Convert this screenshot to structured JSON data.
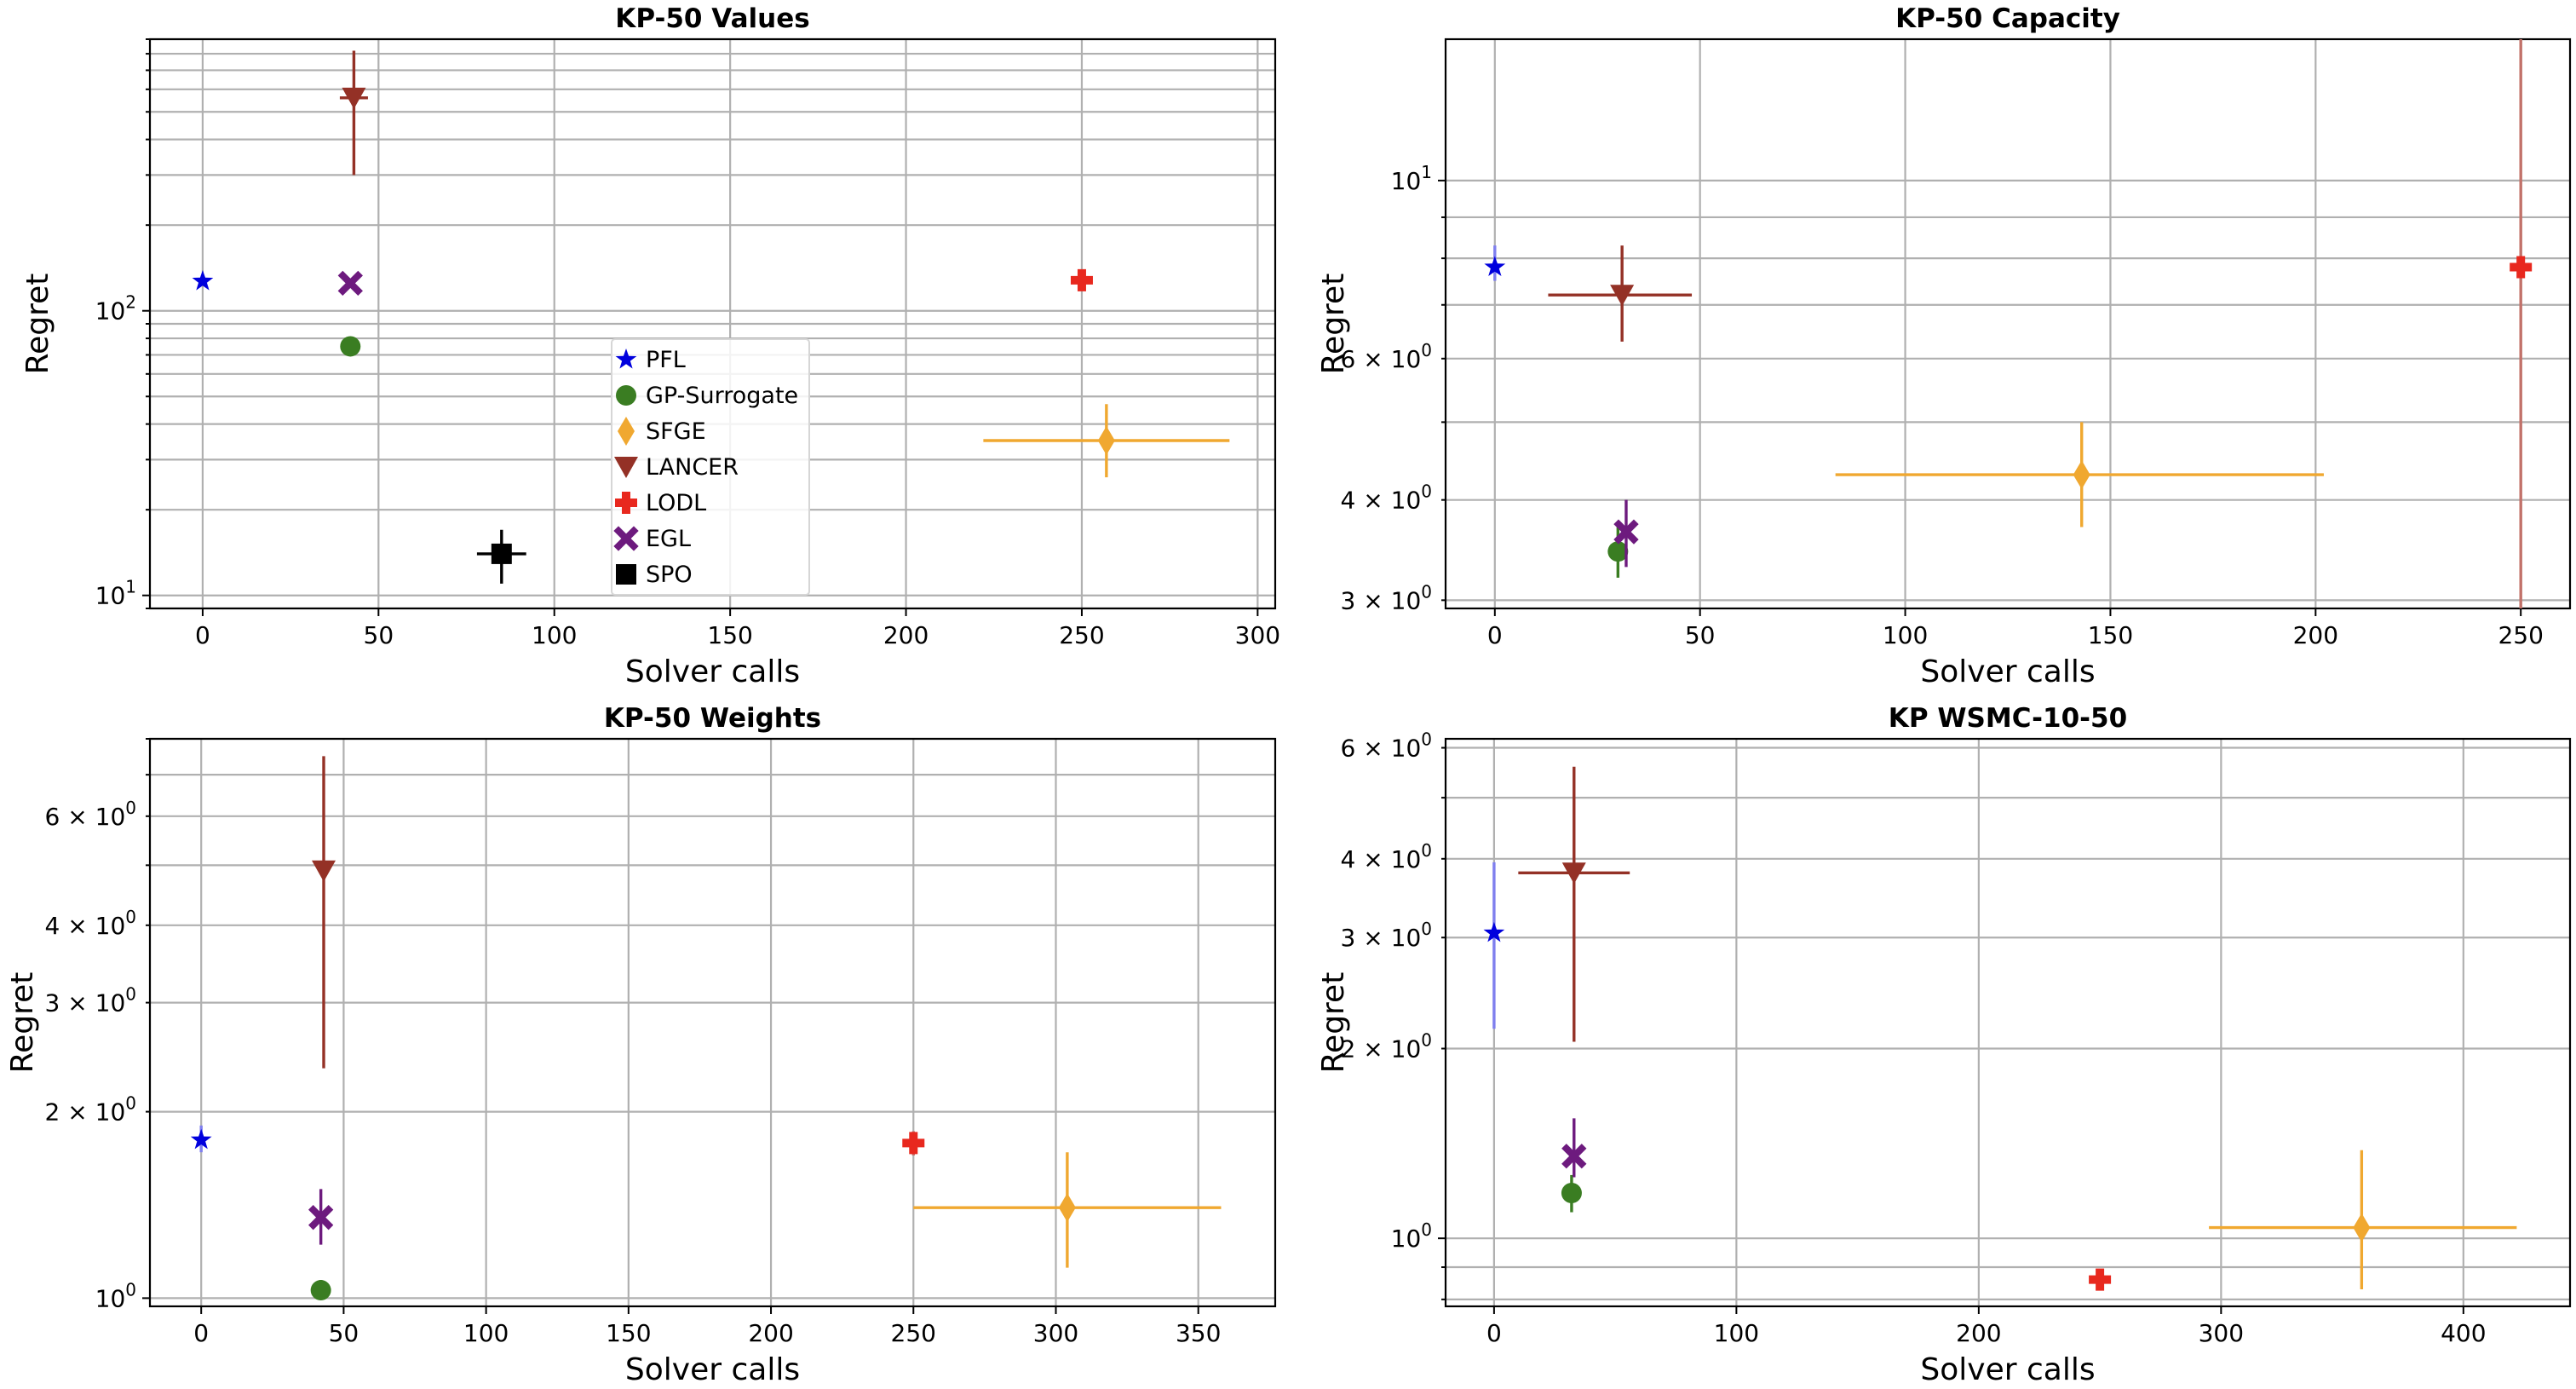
{
  "chart_data": [
    {
      "type": "scatter",
      "title": "KP-50 Values",
      "xlabel": "Solver calls",
      "ylabel": "Regret",
      "yscale": "log",
      "xlim": [
        -15,
        305
      ],
      "ylim": [
        9,
        900
      ],
      "grid": "major and minor",
      "xticks": [
        {
          "v": 0,
          "label": "0"
        },
        {
          "v": 50,
          "label": "50"
        },
        {
          "v": 100,
          "label": "100"
        },
        {
          "v": 150,
          "label": "150"
        },
        {
          "v": 200,
          "label": "200"
        },
        {
          "v": 250,
          "label": "250"
        },
        {
          "v": 300,
          "label": "300"
        }
      ],
      "yticks": [
        {
          "v": 10,
          "base": "10",
          "exp": "1"
        },
        {
          "v": 100,
          "base": "10",
          "exp": "2"
        }
      ],
      "legend": {
        "placement": "center",
        "entries": [
          "PFL",
          "GP-Surrogate",
          "SFGE",
          "LANCER",
          "LODL",
          "EGL",
          "SPO"
        ]
      },
      "points": [
        {
          "series": "PFL",
          "x": 0,
          "y": 127
        },
        {
          "series": "GP-Surrogate",
          "x": 42,
          "y": 75
        },
        {
          "series": "SFGE",
          "x": 257,
          "y": 35,
          "xerr": [
            222,
            292
          ],
          "yerr": [
            26,
            47
          ]
        },
        {
          "series": "LANCER",
          "x": 43,
          "y": 560,
          "yerr": [
            300,
            820
          ],
          "xerr": [
            39,
            47
          ]
        },
        {
          "series": "LODL",
          "x": 250,
          "y": 128
        },
        {
          "series": "EGL",
          "x": 42,
          "y": 125
        },
        {
          "series": "SPO",
          "x": 85,
          "y": 14,
          "xerr": [
            78,
            92
          ],
          "yerr": [
            11,
            17
          ]
        }
      ]
    },
    {
      "type": "scatter",
      "title": "KP-50 Capacity",
      "xlabel": "Solver calls",
      "ylabel": "Regret",
      "yscale": "log",
      "xlim": [
        -12,
        262
      ],
      "ylim": [
        2.93,
        15
      ],
      "grid": "major and minor",
      "xticks": [
        {
          "v": 0,
          "label": "0"
        },
        {
          "v": 50,
          "label": "50"
        },
        {
          "v": 100,
          "label": "100"
        },
        {
          "v": 150,
          "label": "150"
        },
        {
          "v": 200,
          "label": "200"
        },
        {
          "v": 250,
          "label": "250"
        }
      ],
      "yticks": [
        {
          "v": 3,
          "base": "3 × 10",
          "exp": "0"
        },
        {
          "v": 4,
          "base": "4 × 10",
          "exp": "0"
        },
        {
          "v": 6,
          "base": "6 × 10",
          "exp": "0"
        },
        {
          "v": 10,
          "base": "10",
          "exp": "1"
        }
      ],
      "points": [
        {
          "series": "PFL",
          "x": 0,
          "y": 7.8,
          "yerr": [
            7.5,
            8.3
          ]
        },
        {
          "series": "GP-Surrogate",
          "x": 30,
          "y": 3.45,
          "yerr": [
            3.2,
            3.7
          ]
        },
        {
          "series": "SFGE",
          "x": 143,
          "y": 4.3,
          "xerr": [
            83,
            202
          ],
          "yerr": [
            3.7,
            5.0
          ]
        },
        {
          "series": "LANCER",
          "x": 31,
          "y": 7.2,
          "xerr": [
            13,
            48
          ],
          "yerr": [
            6.3,
            8.3
          ]
        },
        {
          "series": "LODL",
          "x": 250,
          "y": 7.8,
          "yerr": [
            2.93,
            15
          ]
        },
        {
          "series": "EGL",
          "x": 32,
          "y": 3.65,
          "yerr": [
            3.3,
            4.0
          ]
        }
      ]
    },
    {
      "type": "scatter",
      "title": "KP-50 Weights",
      "xlabel": "Solver calls",
      "ylabel": "Regret",
      "yscale": "log",
      "xlim": [
        -18,
        377
      ],
      "ylim": [
        0.97,
        8.0
      ],
      "grid": "major and minor",
      "xticks": [
        {
          "v": 0,
          "label": "0"
        },
        {
          "v": 50,
          "label": "50"
        },
        {
          "v": 100,
          "label": "100"
        },
        {
          "v": 150,
          "label": "150"
        },
        {
          "v": 200,
          "label": "200"
        },
        {
          "v": 250,
          "label": "250"
        },
        {
          "v": 300,
          "label": "300"
        },
        {
          "v": 350,
          "label": "350"
        }
      ],
      "yticks": [
        {
          "v": 1,
          "base": "10",
          "exp": "0"
        },
        {
          "v": 2,
          "base": "2 × 10",
          "exp": "0"
        },
        {
          "v": 3,
          "base": "3 × 10",
          "exp": "0"
        },
        {
          "v": 4,
          "base": "4 × 10",
          "exp": "0"
        },
        {
          "v": 6,
          "base": "6 × 10",
          "exp": "0"
        }
      ],
      "points": [
        {
          "series": "PFL",
          "x": 0,
          "y": 1.8,
          "yerr": [
            1.72,
            1.9
          ]
        },
        {
          "series": "GP-Surrogate",
          "x": 42,
          "y": 1.03,
          "yerr": [
            1.0,
            1.07
          ]
        },
        {
          "series": "SFGE",
          "x": 304,
          "y": 1.4,
          "xerr": [
            250,
            358
          ],
          "yerr": [
            1.12,
            1.72
          ]
        },
        {
          "series": "LANCER",
          "x": 43,
          "y": 4.9,
          "yerr": [
            2.35,
            7.5
          ]
        },
        {
          "series": "LODL",
          "x": 250,
          "y": 1.78,
          "yerr": [
            1.7,
            1.86
          ]
        },
        {
          "series": "EGL",
          "x": 42,
          "y": 1.35,
          "yerr": [
            1.22,
            1.5
          ]
        }
      ]
    },
    {
      "type": "scatter",
      "title": "KP WSMC-10-50",
      "xlabel": "Solver calls",
      "ylabel": "Regret",
      "yscale": "log",
      "xlim": [
        -20,
        444
      ],
      "ylim": [
        0.78,
        6.2
      ],
      "grid": "major and minor",
      "xticks": [
        {
          "v": 0,
          "label": "0"
        },
        {
          "v": 100,
          "label": "100"
        },
        {
          "v": 200,
          "label": "200"
        },
        {
          "v": 300,
          "label": "300"
        },
        {
          "v": 400,
          "label": "400"
        }
      ],
      "yticks": [
        {
          "v": 1,
          "base": "10",
          "exp": "0"
        },
        {
          "v": 2,
          "base": "2 × 10",
          "exp": "0"
        },
        {
          "v": 3,
          "base": "3 × 10",
          "exp": "0"
        },
        {
          "v": 4,
          "base": "4 × 10",
          "exp": "0"
        },
        {
          "v": 6,
          "base": "6 × 10",
          "exp": "0"
        }
      ],
      "points": [
        {
          "series": "PFL",
          "x": 0,
          "y": 3.05,
          "yerr": [
            2.15,
            3.95
          ]
        },
        {
          "series": "GP-Surrogate",
          "x": 32,
          "y": 1.18,
          "yerr": [
            1.1,
            1.26
          ]
        },
        {
          "series": "SFGE",
          "x": 358,
          "y": 1.04,
          "xerr": [
            295,
            422
          ],
          "yerr": [
            0.83,
            1.38
          ]
        },
        {
          "series": "LANCER",
          "x": 33,
          "y": 3.8,
          "xerr": [
            10,
            56
          ],
          "yerr": [
            2.05,
            5.6
          ]
        },
        {
          "series": "LODL",
          "x": 250,
          "y": 0.86,
          "yerr": [
            0.83,
            0.89
          ]
        },
        {
          "series": "EGL",
          "x": 33,
          "y": 1.35,
          "yerr": [
            1.25,
            1.55
          ]
        }
      ]
    }
  ],
  "series_styles": {
    "PFL": {
      "marker": "star",
      "color": "#0000dd"
    },
    "GP-Surrogate": {
      "marker": "circle",
      "color": "#3a7d22"
    },
    "SFGE": {
      "marker": "diamond",
      "color": "#f0a830"
    },
    "LANCER": {
      "marker": "triangle-down",
      "color": "#943126"
    },
    "LODL": {
      "marker": "plus",
      "color": "#e8281e"
    },
    "EGL": {
      "marker": "x",
      "color": "#6d1a7e"
    },
    "SPO": {
      "marker": "square",
      "color": "#000000"
    }
  },
  "error_bar_colors": {
    "PFL": "#7f7fee",
    "GP-Surrogate": "#3a7d22",
    "SFGE": "#f0a830",
    "LANCER": "#943126",
    "LODL": "#c2726a",
    "EGL": "#6d1a7e",
    "SPO": "#000000"
  }
}
